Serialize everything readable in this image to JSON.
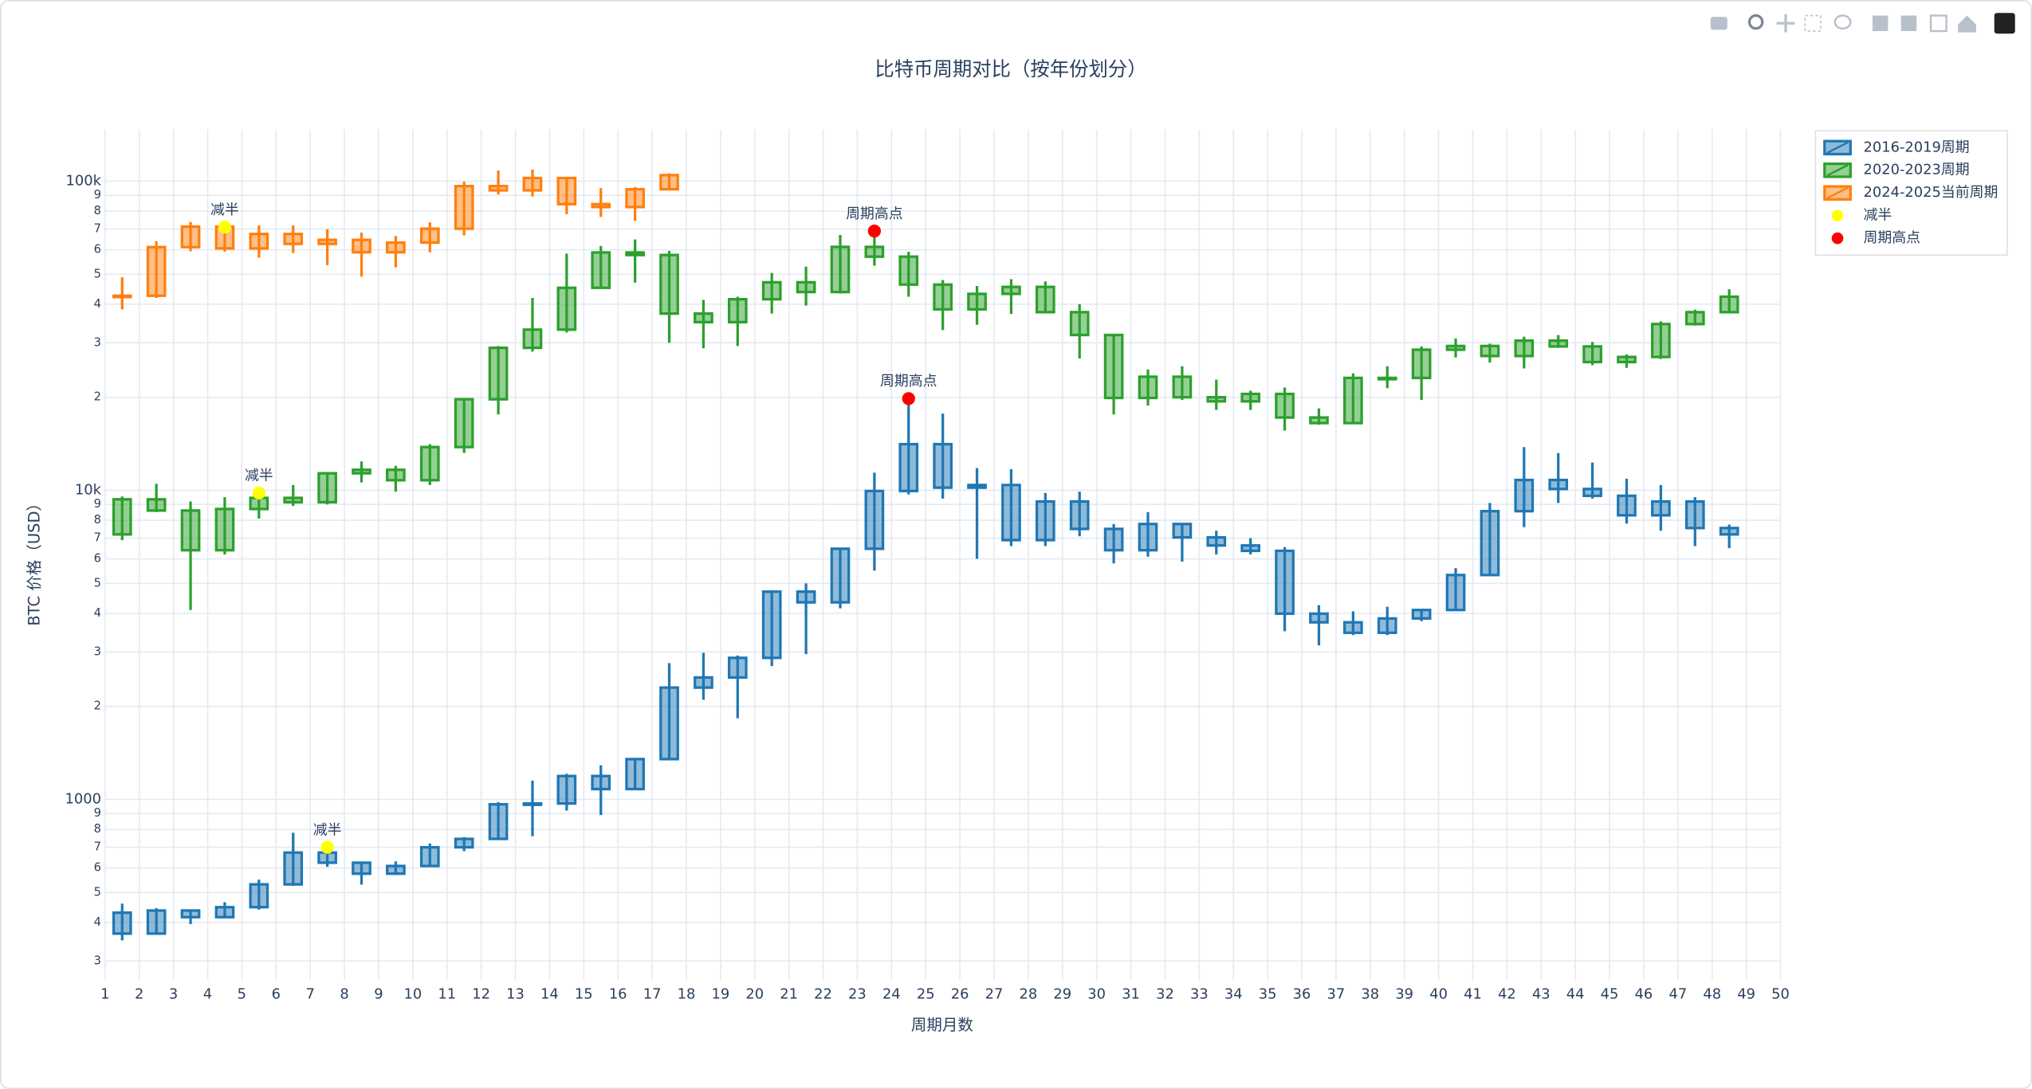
{
  "chart_data": {
    "type": "candlestick",
    "title": "比特币周期对比（按年份划分）",
    "x_label": "周期月数",
    "y_label": "BTC 价格（USD）",
    "log_y": true,
    "grid": true,
    "legend": "top-right",
    "xlim": [
      1,
      50
    ],
    "xticks": [
      1,
      2,
      3,
      4,
      5,
      6,
      7,
      8,
      9,
      10,
      11,
      12,
      13,
      14,
      15,
      16,
      17,
      18,
      19,
      20,
      21,
      22,
      23,
      24,
      25,
      26,
      27,
      28,
      29,
      30,
      31,
      32,
      33,
      34,
      35,
      36,
      37,
      38,
      39,
      40,
      41,
      42,
      43,
      44,
      45,
      46,
      47,
      48,
      49,
      50
    ],
    "ylim": [
      260,
      147000
    ],
    "yticks": [
      {
        "value": 300,
        "label": "3"
      },
      {
        "value": 400,
        "label": "4"
      },
      {
        "value": 500,
        "label": "5"
      },
      {
        "value": 600,
        "label": "6"
      },
      {
        "value": 700,
        "label": "7"
      },
      {
        "value": 800,
        "label": "8"
      },
      {
        "value": 900,
        "label": "9"
      },
      1000,
      {
        "value": 2000,
        "label": "2"
      },
      {
        "value": 3000,
        "label": "3"
      },
      {
        "value": 4000,
        "label": "4"
      },
      {
        "value": 5000,
        "label": "5"
      },
      {
        "value": 6000,
        "label": "6"
      },
      {
        "value": 7000,
        "label": "7"
      },
      {
        "value": 8000,
        "label": "8"
      },
      {
        "value": 9000,
        "label": "9"
      },
      {
        "value": 10000,
        "label": "10k"
      },
      {
        "value": 20000,
        "label": "2"
      },
      {
        "value": 30000,
        "label": "3"
      },
      {
        "value": 40000,
        "label": "4"
      },
      {
        "value": 50000,
        "label": "5"
      },
      {
        "value": 60000,
        "label": "6"
      },
      {
        "value": 70000,
        "label": "7"
      },
      {
        "value": 80000,
        "label": "8"
      },
      {
        "value": 90000,
        "label": "9"
      },
      {
        "value": 100000,
        "label": "100k"
      }
    ],
    "series": [
      {
        "name": "2016-2019周期",
        "color": "#1f77b4",
        "x": [
          1.5,
          2.5,
          3.5,
          4.5,
          5.5,
          6.5,
          7.5,
          8.5,
          9.5,
          10.5,
          11.5,
          12.5,
          13.5,
          14.5,
          15.5,
          16.5,
          17.5,
          18.5,
          19.5,
          20.5,
          21.5,
          22.5,
          23.5,
          24.5,
          25.5,
          26.5,
          27.5,
          28.5,
          29.5,
          30.5,
          31.5,
          32.5,
          33.5,
          34.5,
          35.5,
          36.5,
          37.5,
          38.5,
          39.5,
          40.5,
          41.5,
          42.5,
          43.5,
          44.5,
          45.5,
          46.5,
          47.5,
          48.5
        ],
        "open": [
          430,
          368,
          437,
          416,
          448,
          531,
          673,
          624,
          575,
          609,
          700,
          745,
          964,
          970,
          1190,
          1080,
          1350,
          2300,
          2480,
          2870,
          4700,
          4340,
          6470,
          9950,
          14100,
          10200,
          10400,
          6900,
          9200,
          7500,
          6400,
          7780,
          7040,
          6630,
          6370,
          3990,
          3740,
          3460,
          3850,
          4100,
          5320,
          8560,
          10800,
          10100,
          9600,
          8300,
          9200,
          7550
        ],
        "high": [
          460,
          445,
          440,
          465,
          550,
          780,
          700,
          626,
          630,
          720,
          755,
          980,
          1150,
          1210,
          1290,
          1350,
          2760,
          2980,
          2920,
          4750,
          5000,
          6470,
          11400,
          19800,
          17700,
          11800,
          11700,
          9800,
          9900,
          7780,
          8500,
          7780,
          7400,
          7000,
          6550,
          4250,
          4060,
          4200,
          4140,
          5600,
          9100,
          13800,
          13200,
          12300,
          10900,
          10400,
          9500,
          7750
        ],
        "low": [
          350,
          365,
          395,
          415,
          440,
          525,
          605,
          530,
          570,
          605,
          680,
          740,
          760,
          920,
          890,
          1080,
          1350,
          2100,
          1830,
          2700,
          2950,
          4150,
          5500,
          9700,
          9400,
          6000,
          6600,
          6600,
          7100,
          5800,
          6100,
          5880,
          6200,
          6200,
          3500,
          3150,
          3400,
          3400,
          3770,
          4080,
          5300,
          7600,
          9100,
          9400,
          7800,
          7400,
          6600,
          6500
        ],
        "close": [
          368,
          437,
          416,
          448,
          531,
          673,
          624,
          575,
          609,
          700,
          745,
          964,
          970,
          1190,
          1080,
          1350,
          2300,
          2480,
          2870,
          4700,
          4340,
          6470,
          9950,
          14100,
          10200,
          10400,
          6900,
          9200,
          7500,
          6400,
          7780,
          7040,
          6630,
          6370,
          3990,
          3740,
          3460,
          3850,
          4100,
          5320,
          8560,
          10800,
          10100,
          9600,
          8300,
          9200,
          7550,
          7200
        ]
      },
      {
        "name": "2020-2023周期",
        "color": "#2ca02c",
        "x": [
          1.5,
          2.5,
          3.5,
          4.5,
          5.5,
          6.5,
          7.5,
          8.5,
          9.5,
          10.5,
          11.5,
          12.5,
          13.5,
          14.5,
          15.5,
          16.5,
          17.5,
          18.5,
          19.5,
          20.5,
          21.5,
          22.5,
          23.5,
          24.5,
          25.5,
          26.5,
          27.5,
          28.5,
          29.5,
          30.5,
          31.5,
          32.5,
          33.5,
          34.5,
          35.5,
          36.5,
          37.5,
          38.5,
          39.5,
          40.5,
          41.5,
          42.5,
          43.5,
          44.5,
          45.5,
          46.5,
          47.5,
          48.5
        ],
        "open": [
          7200,
          9350,
          8600,
          6400,
          8700,
          9450,
          9150,
          11350,
          11650,
          10780,
          13800,
          19700,
          28900,
          33100,
          45200,
          58800,
          57700,
          37300,
          35000,
          41500,
          47100,
          43800,
          61300,
          57000,
          46300,
          38500,
          43200,
          45500,
          37700,
          31800,
          19900,
          23300,
          20000,
          19400,
          20500,
          17200,
          16500,
          23100,
          23100,
          28500,
          29300,
          27200,
          30500,
          29200,
          26000,
          27000,
          34500,
          37700
        ],
        "high": [
          9550,
          10500,
          9200,
          9500,
          10000,
          10400,
          11400,
          12400,
          12000,
          14100,
          19900,
          29300,
          41900,
          58300,
          61700,
          64800,
          59500,
          41300,
          42300,
          50500,
          52900,
          67000,
          69000,
          59100,
          47900,
          45800,
          48200,
          47400,
          40000,
          31900,
          24600,
          25200,
          22800,
          21000,
          21500,
          18400,
          23900,
          25200,
          29200,
          31000,
          29800,
          31400,
          31800,
          30200,
          27500,
          35200,
          38400,
          44700
        ],
        "low": [
          6900,
          8500,
          4100,
          6200,
          8100,
          8900,
          9000,
          10600,
          9900,
          10400,
          13200,
          17600,
          28100,
          32400,
          45000,
          47000,
          30000,
          28800,
          29300,
          37300,
          39600,
          43300,
          53300,
          42300,
          33000,
          34300,
          37200,
          37600,
          26700,
          17600,
          18800,
          19600,
          18200,
          18200,
          15600,
          16300,
          16500,
          21400,
          19600,
          26900,
          25900,
          24800,
          28900,
          25400,
          24900,
          26600,
          34100,
          37600
        ],
        "close": [
          9350,
          8600,
          6400,
          8700,
          9450,
          9150,
          11350,
          11650,
          10780,
          13800,
          19700,
          28900,
          33100,
          45200,
          58800,
          57700,
          37300,
          35000,
          41500,
          47100,
          43800,
          61300,
          57000,
          46300,
          38500,
          43200,
          45500,
          37700,
          31800,
          19900,
          23300,
          20000,
          19400,
          20500,
          17200,
          16500,
          23100,
          23100,
          28500,
          29300,
          27200,
          30500,
          29200,
          26000,
          27000,
          34500,
          37700,
          42300
        ]
      },
      {
        "name": "2024-2025当前周期",
        "color": "#ff7f0e",
        "x": [
          1.5,
          2.5,
          3.5,
          4.5,
          5.5,
          6.5,
          7.5,
          8.5,
          9.5,
          10.5,
          11.5,
          12.5,
          13.5,
          14.5,
          15.5,
          16.5,
          17.5
        ],
        "open": [
          42300,
          42600,
          61200,
          71300,
          60600,
          67500,
          62700,
          64600,
          58900,
          63300,
          70200,
          96400,
          93400,
          102400,
          84300,
          82500,
          94200
        ],
        "high": [
          48900,
          63900,
          73800,
          72800,
          71900,
          72000,
          70000,
          68200,
          66500,
          73600,
          99600,
          108300,
          109100,
          102600,
          95000,
          95800,
          106000
        ],
        "low": [
          38500,
          41900,
          59300,
          59200,
          56600,
          58600,
          53500,
          49100,
          52600,
          58900,
          66800,
          90700,
          89200,
          78200,
          76600,
          74400,
          93500
        ],
        "close": [
          42600,
          61200,
          71300,
          60600,
          67500,
          62700,
          64600,
          58900,
          63300,
          70200,
          96400,
          93400,
          102400,
          84300,
          82500,
          94200,
          104600
        ]
      }
    ],
    "markers": [
      {
        "name": "减半",
        "color": "#ffff00",
        "x": [
          7.5,
          5.5,
          4.5
        ],
        "values": [
          700,
          9800,
          71000
        ],
        "labels": [
          "减半",
          "减半",
          "减半"
        ]
      },
      {
        "name": "周期高点",
        "color": "#ff0000",
        "x": [
          24.5,
          23.5
        ],
        "values": [
          19800,
          69000
        ],
        "labels": [
          "周期高点",
          "周期高点"
        ]
      }
    ]
  }
}
